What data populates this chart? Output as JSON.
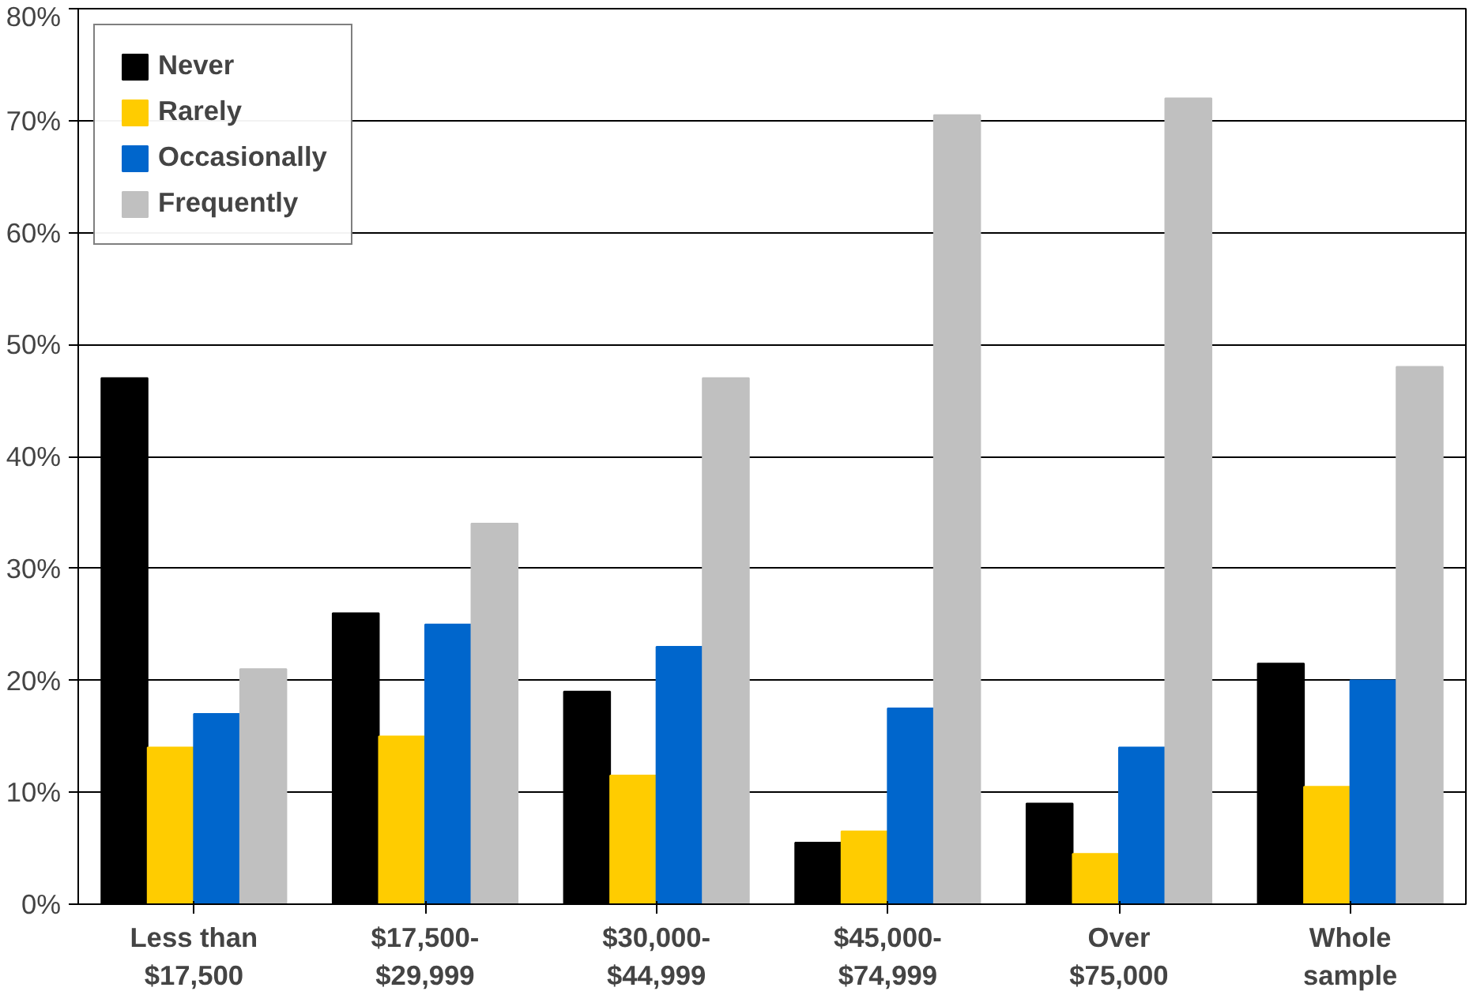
{
  "chart_data": {
    "type": "bar",
    "categories": [
      "Less than\n$17,500",
      "$17,500-\n$29,999",
      "$30,000-\n$44,999",
      "$45,000-\n$74,999",
      "Over\n$75,000",
      "Whole\nsample"
    ],
    "series": [
      {
        "name": "Never",
        "color": "#000000",
        "values": [
          47,
          26,
          19,
          5.5,
          9,
          21.5
        ]
      },
      {
        "name": "Rarely",
        "color": "#ffcc00",
        "values": [
          14,
          15,
          11.5,
          6.5,
          4.5,
          10.5
        ]
      },
      {
        "name": "Occasionally",
        "color": "#0066cc",
        "values": [
          17,
          25,
          23,
          17.5,
          14,
          20
        ]
      },
      {
        "name": "Frequently",
        "color": "#c0c0c0",
        "values": [
          21,
          34,
          47,
          70.5,
          72,
          48
        ]
      }
    ],
    "ylim": [
      0,
      80
    ],
    "yticks": [
      {
        "value": 0,
        "label": "0%"
      },
      {
        "value": 10,
        "label": "10%"
      },
      {
        "value": 20,
        "label": "20%"
      },
      {
        "value": 30,
        "label": "30%"
      },
      {
        "value": 40,
        "label": "40%"
      },
      {
        "value": 50,
        "label": "50%"
      },
      {
        "value": 60,
        "label": "60%"
      },
      {
        "value": 70,
        "label": "70%"
      },
      {
        "value": 80,
        "label": "80%"
      }
    ],
    "grid": "y",
    "legend": "top left"
  }
}
